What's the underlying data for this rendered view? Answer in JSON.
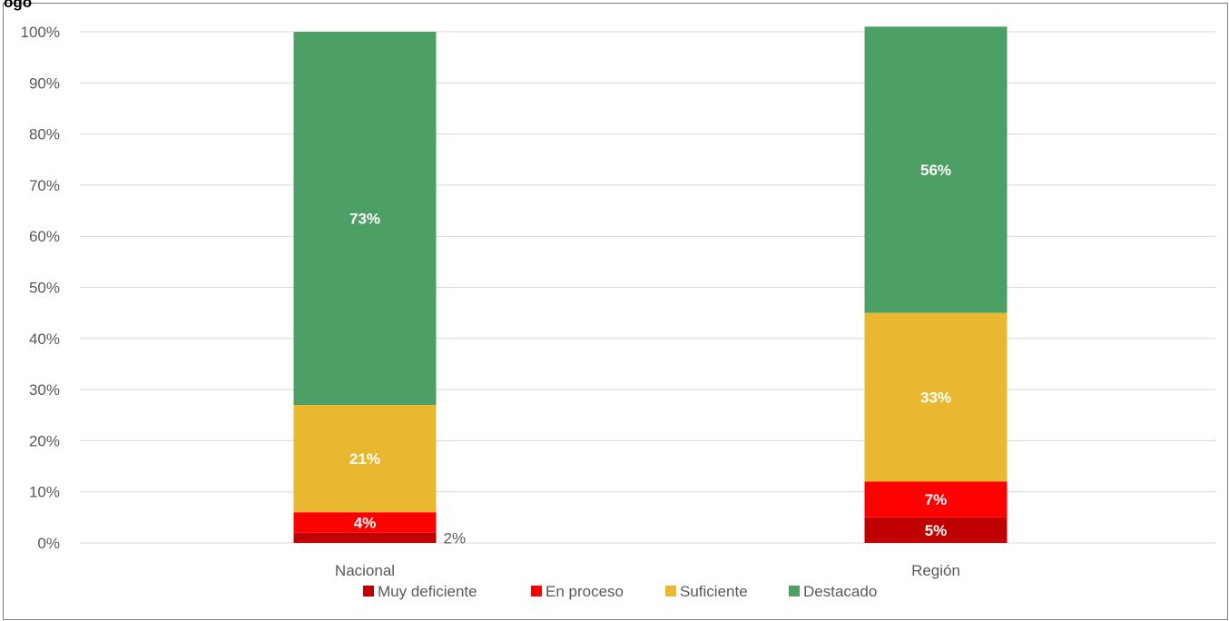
{
  "partial_title": "ogo",
  "chart_data": {
    "type": "bar",
    "stacked": true,
    "categories": [
      "Nacional",
      "Región"
    ],
    "series": [
      {
        "name": "Muy deficiente",
        "color": "#C00000",
        "values": [
          2,
          5
        ],
        "labels": [
          "2%",
          "5%"
        ]
      },
      {
        "name": "En proceso",
        "color": "#FF0000",
        "values": [
          4,
          7
        ],
        "labels": [
          "4%",
          "7%"
        ]
      },
      {
        "name": "Suficiente",
        "color": "#E9B82E",
        "values": [
          21,
          33
        ],
        "labels": [
          "21%",
          "33%"
        ]
      },
      {
        "name": "Destacado",
        "color": "#4CA065",
        "values": [
          73,
          56
        ],
        "labels": [
          "73%",
          "56%"
        ]
      }
    ],
    "ylim": [
      0,
      100
    ],
    "yticks": [
      "0%",
      "10%",
      "20%",
      "30%",
      "40%",
      "50%",
      "60%",
      "70%",
      "80%",
      "90%",
      "100%"
    ],
    "grid": true,
    "legend_position": "bottom"
  }
}
